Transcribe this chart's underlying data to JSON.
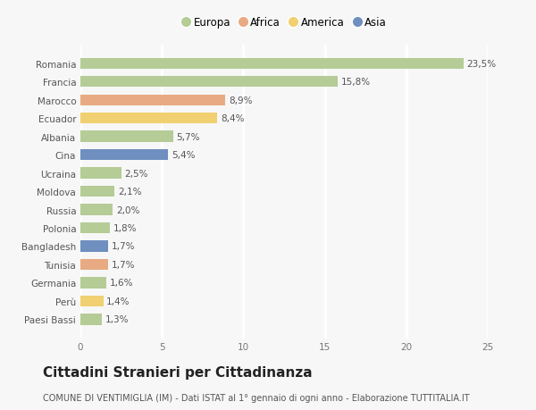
{
  "countries": [
    "Paesi Bassi",
    "Perù",
    "Germania",
    "Tunisia",
    "Bangladesh",
    "Polonia",
    "Russia",
    "Moldova",
    "Ucraina",
    "Cina",
    "Albania",
    "Ecuador",
    "Marocco",
    "Francia",
    "Romania"
  ],
  "values": [
    1.3,
    1.4,
    1.6,
    1.7,
    1.7,
    1.8,
    2.0,
    2.1,
    2.5,
    5.4,
    5.7,
    8.4,
    8.9,
    15.8,
    23.5
  ],
  "labels": [
    "1,3%",
    "1,4%",
    "1,6%",
    "1,7%",
    "1,7%",
    "1,8%",
    "2,0%",
    "2,1%",
    "2,5%",
    "5,4%",
    "5,7%",
    "8,4%",
    "8,9%",
    "15,8%",
    "23,5%"
  ],
  "continents": [
    "Europa",
    "America",
    "Europa",
    "Africa",
    "Asia",
    "Europa",
    "Europa",
    "Europa",
    "Europa",
    "Asia",
    "Europa",
    "America",
    "Africa",
    "Europa",
    "Europa"
  ],
  "colors": {
    "Europa": "#b5cc96",
    "Africa": "#e8aa82",
    "America": "#f0d070",
    "Asia": "#6e8fbf"
  },
  "background_color": "#f7f7f7",
  "plot_bg_color": "#f7f7f7",
  "grid_color": "#ffffff",
  "title": "Cittadini Stranieri per Cittadinanza",
  "subtitle": "COMUNE DI VENTIMIGLIA (IM) - Dati ISTAT al 1° gennaio di ogni anno - Elaborazione TUTTITALIA.IT",
  "xlim": [
    0,
    25
  ],
  "xticks": [
    0,
    5,
    10,
    15,
    20,
    25
  ],
  "legend_order": [
    "Europa",
    "Africa",
    "America",
    "Asia"
  ],
  "title_fontsize": 11,
  "subtitle_fontsize": 7,
  "label_fontsize": 7.5,
  "tick_fontsize": 7.5,
  "legend_fontsize": 8.5,
  "bar_height": 0.6
}
